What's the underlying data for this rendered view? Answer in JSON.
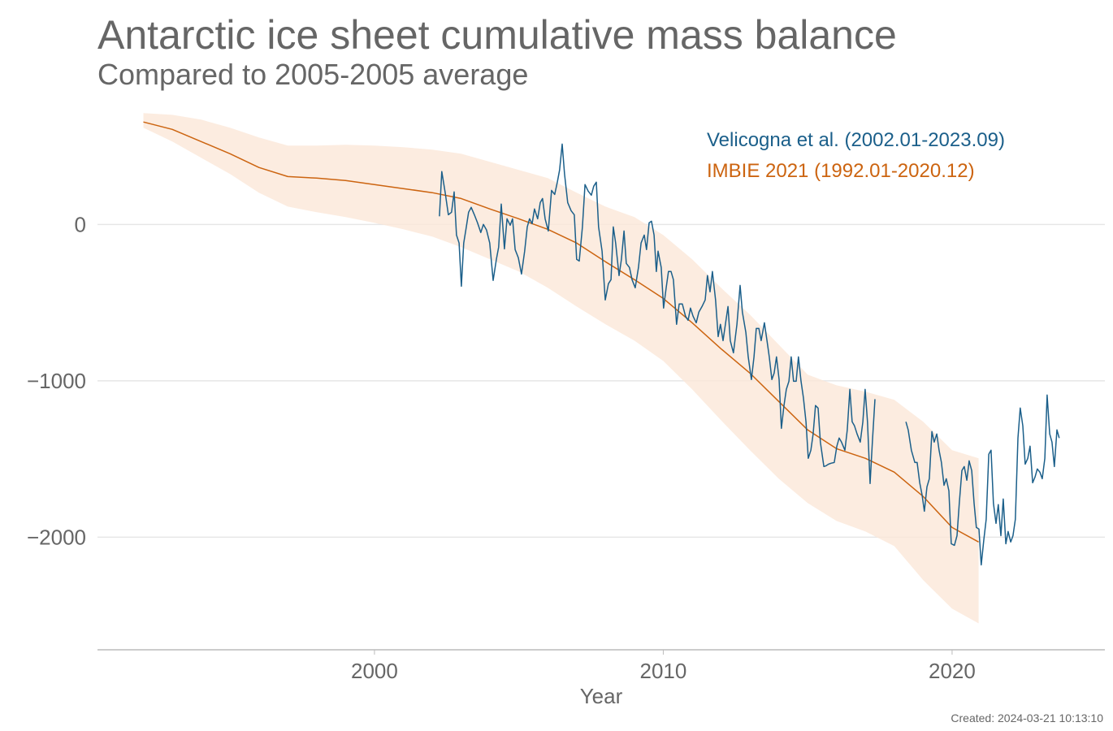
{
  "chart_data": {
    "type": "line",
    "title": "Antarctic ice sheet cumulative mass balance",
    "subtitle": "Compared to 2005-2005 average",
    "xlabel": "Year",
    "footer": "Created: 2024-03-21 10:13:10",
    "xlim": [
      1990.41,
      2025.29
    ],
    "xticks": [
      2000,
      2010,
      2020
    ],
    "ylim": [
      -2720,
      760
    ],
    "yticks": [
      {
        "value": -2000,
        "label": "−2000"
      },
      {
        "value": -1000,
        "label": "−1000"
      },
      0
    ],
    "grid": true,
    "legend": "top-right",
    "series": [
      {
        "name": "Velicogna et al. (2002.01-2023.09)",
        "color": "#1b5f8a",
        "x": [
          2002.25,
          2002.33,
          2002.45,
          2002.56,
          2002.67,
          2002.76,
          2002.84,
          2002.93,
          2003.01,
          2003.09,
          2003.18,
          2003.26,
          2003.35,
          2003.46,
          2003.57,
          2003.68,
          2003.77,
          2003.88,
          2003.99,
          2004.11,
          2004.22,
          2004.3,
          2004.39,
          2004.5,
          2004.59,
          2004.7,
          2004.78,
          2004.87,
          2004.98,
          2005.09,
          2005.2,
          2005.29,
          2005.37,
          2005.46,
          2005.54,
          2005.65,
          2005.74,
          2005.82,
          2005.91,
          2006.02,
          2006.13,
          2006.24,
          2006.33,
          2006.41,
          2006.5,
          2006.58,
          2006.69,
          2006.81,
          2006.92,
          2007.0,
          2007.09,
          2007.2,
          2007.29,
          2007.4,
          2007.51,
          2007.59,
          2007.68,
          2007.76,
          2007.88,
          2007.99,
          2008.1,
          2008.19,
          2008.27,
          2008.35,
          2008.47,
          2008.55,
          2008.64,
          2008.72,
          2008.83,
          2008.92,
          2009.03,
          2009.14,
          2009.23,
          2009.34,
          2009.42,
          2009.51,
          2009.59,
          2009.68,
          2009.76,
          2009.82,
          2009.93,
          2010.01,
          2010.1,
          2010.18,
          2010.27,
          2010.35,
          2010.46,
          2010.55,
          2010.66,
          2010.77,
          2010.86,
          2010.94,
          2011.03,
          2011.14,
          2011.23,
          2011.34,
          2011.45,
          2011.53,
          2011.62,
          2011.7,
          2011.81,
          2011.9,
          2011.98,
          2012.07,
          2012.15,
          2012.24,
          2012.32,
          2012.43,
          2012.55,
          2012.66,
          2012.74,
          2012.86,
          2012.94,
          2013.05,
          2013.14,
          2013.22,
          2013.31,
          2013.39,
          2013.5,
          2013.59,
          2013.67,
          2013.76,
          2013.84,
          2013.92,
          2014.01,
          2014.09,
          2014.18,
          2014.26,
          2014.35,
          2014.43,
          2014.51,
          2014.6,
          2014.68,
          2014.77,
          2014.85,
          2014.94,
          2015.02,
          2015.11,
          2015.19,
          2015.27,
          2015.36,
          2015.44,
          2015.56,
          2015.64,
          2015.72,
          2015.81,
          2015.92,
          2016.01,
          2016.09,
          2016.17,
          2016.29,
          2016.37,
          2016.46,
          2016.54,
          2016.62,
          2016.71,
          2016.82,
          2016.91,
          2016.99,
          2017.07,
          2017.16,
          2017.24,
          2017.33,
          2017.8,
          2018.4,
          2018.48,
          2018.59,
          2018.71,
          2018.79,
          2018.88,
          2018.96,
          2019.04,
          2019.13,
          2019.21,
          2019.3,
          2019.38,
          2019.47,
          2019.55,
          2019.63,
          2019.72,
          2019.8,
          2019.89,
          2019.97,
          2020.08,
          2020.17,
          2020.25,
          2020.34,
          2020.42,
          2020.51,
          2020.59,
          2020.68,
          2020.76,
          2020.84,
          2020.93,
          2021.01,
          2021.1,
          2021.18,
          2021.27,
          2021.35,
          2021.43,
          2021.52,
          2021.6,
          2021.69,
          2021.77,
          2021.86,
          2021.94,
          2022.03,
          2022.11,
          2022.19,
          2022.28,
          2022.36,
          2022.45,
          2022.53,
          2022.62,
          2022.7,
          2022.79,
          2022.87,
          2022.95,
          2023.04,
          2023.12,
          2023.21,
          2023.29,
          2023.38,
          2023.46,
          2023.54,
          2023.63,
          2023.71
        ],
        "values": [
          52,
          338,
          203,
          62,
          78,
          208,
          -68,
          -119,
          -395,
          -119,
          -16,
          78,
          109,
          62,
          10,
          -52,
          0,
          -36,
          -119,
          -358,
          -223,
          -145,
          130,
          -156,
          36,
          -5,
          36,
          -161,
          -213,
          -317,
          -171,
          -16,
          36,
          5,
          99,
          36,
          140,
          166,
          36,
          -42,
          218,
          192,
          270,
          348,
          514,
          322,
          140,
          88,
          62,
          -223,
          -234,
          -16,
          255,
          213,
          187,
          244,
          270,
          -16,
          -171,
          -483,
          -379,
          -353,
          -16,
          -119,
          -327,
          -223,
          -42,
          -249,
          -275,
          -353,
          -405,
          -275,
          -119,
          -68,
          -161,
          10,
          21,
          -68,
          -301,
          -171,
          -275,
          -535,
          -405,
          -301,
          -301,
          -353,
          -639,
          -509,
          -509,
          -587,
          -613,
          -535,
          -587,
          -629,
          -561,
          -525,
          -483,
          -327,
          -431,
          -301,
          -483,
          -717,
          -639,
          -743,
          -639,
          -525,
          -743,
          -821,
          -639,
          -390,
          -561,
          -691,
          -847,
          -992,
          -847,
          -665,
          -665,
          -743,
          -629,
          -743,
          -847,
          -992,
          -951,
          -847,
          -992,
          -1304,
          -1158,
          -1055,
          -1003,
          -847,
          -1003,
          -1003,
          -847,
          -1003,
          -1107,
          -1262,
          -1496,
          -1444,
          -1340,
          -1158,
          -1174,
          -1392,
          -1548,
          -1543,
          -1533,
          -1527,
          -1522,
          -1418,
          -1366,
          -1392,
          -1444,
          -1314,
          -1055,
          -1262,
          -1288,
          -1340,
          -1392,
          -1262,
          -1055,
          -1262,
          -1657,
          -1392,
          -1117,
          null,
          -1262,
          -1314,
          -1444,
          -1522,
          -1522,
          -1652,
          -1730,
          -1834,
          -1678,
          -1626,
          -1325,
          -1392,
          -1340,
          -1444,
          -1522,
          -1668,
          -1626,
          -1704,
          -2042,
          -2052,
          -1990,
          -1782,
          -1574,
          -1548,
          -1636,
          -1512,
          -1574,
          -1782,
          -1938,
          -1948,
          -2177,
          -2016,
          -1886,
          -1470,
          -1444,
          -1782,
          -1912,
          -1792,
          -1990,
          -1756,
          -2042,
          -1964,
          -2031,
          -1990,
          -1886,
          -1366,
          -1174,
          -1288,
          -1533,
          -1496,
          -1418,
          -1652,
          -1616,
          -1564,
          -1584,
          -1626,
          -1496,
          -1091,
          -1340,
          -1392,
          -1548,
          -1314,
          -1366
        ]
      },
      {
        "name": "IMBIE 2021 (1992.01-2020.12)",
        "color": "#cc6410",
        "band_color": "#fbe7d8",
        "x": [
          1992,
          1993,
          1994,
          1995,
          1996,
          1997,
          1998,
          1999,
          2000,
          2001,
          2002,
          2003,
          2004,
          2005,
          2006,
          2007,
          2008,
          2009,
          2010,
          2011,
          2012,
          2013,
          2014,
          2015,
          2016,
          2017,
          2018,
          2019,
          2020,
          2020.92
        ],
        "values": [
          655,
          608,
          530,
          452,
          364,
          306,
          296,
          281,
          255,
          229,
          203,
          166,
          99,
          36,
          -31,
          -119,
          -239,
          -353,
          -473,
          -629,
          -795,
          -951,
          -1132,
          -1314,
          -1434,
          -1496,
          -1584,
          -1740,
          -1938,
          -2031
        ],
        "upper": [
          712,
          701,
          670,
          618,
          556,
          504,
          504,
          509,
          504,
          494,
          478,
          452,
          400,
          348,
          296,
          203,
          114,
          47,
          -68,
          -223,
          -405,
          -577,
          -769,
          -961,
          -1029,
          -1070,
          -1122,
          -1262,
          -1444,
          -1496
        ],
        "lower": [
          618,
          530,
          426,
          322,
          203,
          114,
          78,
          47,
          10,
          -31,
          -78,
          -145,
          -223,
          -301,
          -405,
          -525,
          -639,
          -743,
          -873,
          -1055,
          -1252,
          -1444,
          -1626,
          -1782,
          -1896,
          -1964,
          -2057,
          -2275,
          -2457,
          -2551
        ]
      }
    ]
  }
}
